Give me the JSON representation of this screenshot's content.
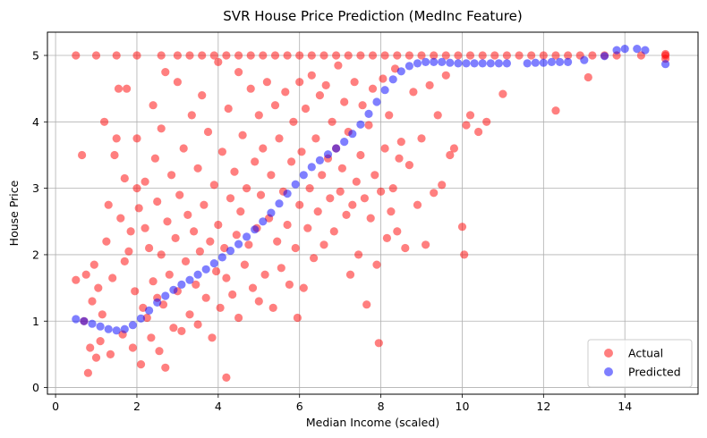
{
  "chart_data": {
    "type": "scatter",
    "title": "SVR House Price Prediction (MedInc Feature)",
    "xlabel": "Median Income (scaled)",
    "ylabel": "House Price",
    "xlim": [
      -0.2,
      15.8
    ],
    "ylim": [
      -0.1,
      5.35
    ],
    "x_ticks": [
      0,
      2,
      4,
      6,
      8,
      10,
      12,
      14
    ],
    "y_ticks": [
      0,
      1,
      2,
      3,
      4,
      5
    ],
    "grid": true,
    "legend_position": "lower-right",
    "series": [
      {
        "name": "Actual",
        "color": "#ff0000",
        "opacity": 0.5,
        "points": [
          [
            0.5,
            1.62
          ],
          [
            0.5,
            5.0
          ],
          [
            0.65,
            3.5
          ],
          [
            0.7,
            1.0
          ],
          [
            0.75,
            1.7
          ],
          [
            0.8,
            0.22
          ],
          [
            0.85,
            0.6
          ],
          [
            0.9,
            1.3
          ],
          [
            0.95,
            1.85
          ],
          [
            1.0,
            0.45
          ],
          [
            1.0,
            5.0
          ],
          [
            1.05,
            1.5
          ],
          [
            1.1,
            0.7
          ],
          [
            1.15,
            1.1
          ],
          [
            1.2,
            4.0
          ],
          [
            1.25,
            2.2
          ],
          [
            1.3,
            2.75
          ],
          [
            1.35,
            0.5
          ],
          [
            1.4,
            1.65
          ],
          [
            1.45,
            3.5
          ],
          [
            1.5,
            3.75
          ],
          [
            1.55,
            4.5
          ],
          [
            1.6,
            2.55
          ],
          [
            1.65,
            0.8
          ],
          [
            1.7,
            1.9
          ],
          [
            1.7,
            3.15
          ],
          [
            1.75,
            4.5
          ],
          [
            1.8,
            2.05
          ],
          [
            1.85,
            2.35
          ],
          [
            1.9,
            0.6
          ],
          [
            1.95,
            1.45
          ],
          [
            2.0,
            3.0
          ],
          [
            2.0,
            3.75
          ],
          [
            2.05,
            2.7
          ],
          [
            2.1,
            0.35
          ],
          [
            2.15,
            1.2
          ],
          [
            2.2,
            2.4
          ],
          [
            2.2,
            3.1
          ],
          [
            2.25,
            1.05
          ],
          [
            2.3,
            2.1
          ],
          [
            2.35,
            0.75
          ],
          [
            2.4,
            4.25
          ],
          [
            2.4,
            1.6
          ],
          [
            2.45,
            3.45
          ],
          [
            2.5,
            2.8
          ],
          [
            2.5,
            1.35
          ],
          [
            2.55,
            0.55
          ],
          [
            2.6,
            3.9
          ],
          [
            2.6,
            2.0
          ],
          [
            2.65,
            1.25
          ],
          [
            2.7,
            0.3
          ],
          [
            2.7,
            4.75
          ],
          [
            2.75,
            2.5
          ],
          [
            2.8,
            1.7
          ],
          [
            2.85,
            3.2
          ],
          [
            2.9,
            0.9
          ],
          [
            2.95,
            2.25
          ],
          [
            3.0,
            4.6
          ],
          [
            3.0,
            1.45
          ],
          [
            3.05,
            2.9
          ],
          [
            3.1,
            0.85
          ],
          [
            3.15,
            3.6
          ],
          [
            3.2,
            1.9
          ],
          [
            3.25,
            2.6
          ],
          [
            3.3,
            1.1
          ],
          [
            3.35,
            4.1
          ],
          [
            3.4,
            2.35
          ],
          [
            3.45,
            1.55
          ],
          [
            3.5,
            3.3
          ],
          [
            3.5,
            0.95
          ],
          [
            3.55,
            2.05
          ],
          [
            3.6,
            4.4
          ],
          [
            3.65,
            2.75
          ],
          [
            3.7,
            1.35
          ],
          [
            3.75,
            3.85
          ],
          [
            3.8,
            2.2
          ],
          [
            3.85,
            0.75
          ],
          [
            3.9,
            3.05
          ],
          [
            3.95,
            1.75
          ],
          [
            4.0,
            4.9
          ],
          [
            4.0,
            2.45
          ],
          [
            4.05,
            1.2
          ],
          [
            4.1,
            3.55
          ],
          [
            4.15,
            2.1
          ],
          [
            4.2,
            0.15
          ],
          [
            4.2,
            1.65
          ],
          [
            4.25,
            4.2
          ],
          [
            4.3,
            2.85
          ],
          [
            4.35,
            1.4
          ],
          [
            4.4,
            3.25
          ],
          [
            4.45,
            2.3
          ],
          [
            4.5,
            4.75
          ],
          [
            4.5,
            1.05
          ],
          [
            4.55,
            2.65
          ],
          [
            4.6,
            3.8
          ],
          [
            4.65,
            1.85
          ],
          [
            4.7,
            3.0
          ],
          [
            4.75,
            2.15
          ],
          [
            4.8,
            4.5
          ],
          [
            4.85,
            1.5
          ],
          [
            4.9,
            3.4
          ],
          [
            4.95,
            2.4
          ],
          [
            5.0,
            4.1
          ],
          [
            5.0,
            1.3
          ],
          [
            5.05,
            2.9
          ],
          [
            5.1,
            3.6
          ],
          [
            5.15,
            1.7
          ],
          [
            5.2,
            4.6
          ],
          [
            5.25,
            2.55
          ],
          [
            5.3,
            3.2
          ],
          [
            5.35,
            1.2
          ],
          [
            5.4,
            4.25
          ],
          [
            5.45,
            2.2
          ],
          [
            5.5,
            3.75
          ],
          [
            5.55,
            1.8
          ],
          [
            5.6,
            2.95
          ],
          [
            5.65,
            4.45
          ],
          [
            5.7,
            2.45
          ],
          [
            5.75,
            1.55
          ],
          [
            5.8,
            3.4
          ],
          [
            5.85,
            4.0
          ],
          [
            5.9,
            2.1
          ],
          [
            5.95,
            1.05
          ],
          [
            6.0,
            4.6
          ],
          [
            6.0,
            2.75
          ],
          [
            6.05,
            3.55
          ],
          [
            6.1,
            1.5
          ],
          [
            6.15,
            4.2
          ],
          [
            6.2,
            2.4
          ],
          [
            6.25,
            3.0
          ],
          [
            6.3,
            4.7
          ],
          [
            6.35,
            1.95
          ],
          [
            6.4,
            3.75
          ],
          [
            6.45,
            2.65
          ],
          [
            6.5,
            4.4
          ],
          [
            6.55,
            3.2
          ],
          [
            6.6,
            2.15
          ],
          [
            6.65,
            4.55
          ],
          [
            6.7,
            3.45
          ],
          [
            6.75,
            2.85
          ],
          [
            6.8,
            4.0
          ],
          [
            6.85,
            2.35
          ],
          [
            6.9,
            3.6
          ],
          [
            6.95,
            4.85
          ],
          [
            7.0,
            2.95
          ],
          [
            7.05,
            3.3
          ],
          [
            7.1,
            4.3
          ],
          [
            7.15,
            2.6
          ],
          [
            7.2,
            3.85
          ],
          [
            7.25,
            1.7
          ],
          [
            7.3,
            2.75
          ],
          [
            7.35,
            4.6
          ],
          [
            7.4,
            3.1
          ],
          [
            7.45,
            2.0
          ],
          [
            7.5,
            3.5
          ],
          [
            7.55,
            4.25
          ],
          [
            7.6,
            2.85
          ],
          [
            7.65,
            1.25
          ],
          [
            7.7,
            3.95
          ],
          [
            7.75,
            2.55
          ],
          [
            7.8,
            4.5
          ],
          [
            7.85,
            3.2
          ],
          [
            7.9,
            1.85
          ],
          [
            7.95,
            0.67
          ],
          [
            8.0,
            2.95
          ],
          [
            8.05,
            4.65
          ],
          [
            8.1,
            3.6
          ],
          [
            8.15,
            2.25
          ],
          [
            8.2,
            4.1
          ],
          [
            8.25,
            2.65
          ],
          [
            8.3,
            3.0
          ],
          [
            8.35,
            4.8
          ],
          [
            8.4,
            2.35
          ],
          [
            8.45,
            3.45
          ],
          [
            8.5,
            3.7
          ],
          [
            8.6,
            2.1
          ],
          [
            8.7,
            3.35
          ],
          [
            8.8,
            4.45
          ],
          [
            8.9,
            2.75
          ],
          [
            9.0,
            3.75
          ],
          [
            9.1,
            2.15
          ],
          [
            9.2,
            4.55
          ],
          [
            9.3,
            2.93
          ],
          [
            9.4,
            4.1
          ],
          [
            9.5,
            3.05
          ],
          [
            9.6,
            4.7
          ],
          [
            9.7,
            3.5
          ],
          [
            9.8,
            3.6
          ],
          [
            10.0,
            2.42
          ],
          [
            10.05,
            2.0
          ],
          [
            10.1,
            3.95
          ],
          [
            10.2,
            4.1
          ],
          [
            10.4,
            3.85
          ],
          [
            10.6,
            4.0
          ],
          [
            11.0,
            4.42
          ],
          [
            12.3,
            4.17
          ],
          [
            13.1,
            4.67
          ],
          [
            1.5,
            5.0
          ],
          [
            2.0,
            5.0
          ],
          [
            2.6,
            5.0
          ],
          [
            3.0,
            5.0
          ],
          [
            3.3,
            5.0
          ],
          [
            3.6,
            5.0
          ],
          [
            3.9,
            5.0
          ],
          [
            4.2,
            5.0
          ],
          [
            4.5,
            5.0
          ],
          [
            4.8,
            5.0
          ],
          [
            5.1,
            5.0
          ],
          [
            5.4,
            5.0
          ],
          [
            5.7,
            5.0
          ],
          [
            6.0,
            5.0
          ],
          [
            6.3,
            5.0
          ],
          [
            6.6,
            5.0
          ],
          [
            6.9,
            5.0
          ],
          [
            7.2,
            5.0
          ],
          [
            7.5,
            5.0
          ],
          [
            7.8,
            5.0
          ],
          [
            8.1,
            5.0
          ],
          [
            8.4,
            5.0
          ],
          [
            8.7,
            5.0
          ],
          [
            9.0,
            5.0
          ],
          [
            9.3,
            5.0
          ],
          [
            9.6,
            5.0
          ],
          [
            9.9,
            5.0
          ],
          [
            10.2,
            5.0
          ],
          [
            10.5,
            5.0
          ],
          [
            10.8,
            5.0
          ],
          [
            11.1,
            5.0
          ],
          [
            11.4,
            5.0
          ],
          [
            11.7,
            5.0
          ],
          [
            12.0,
            5.0
          ],
          [
            12.3,
            5.0
          ],
          [
            12.6,
            5.0
          ],
          [
            12.9,
            5.0
          ],
          [
            13.2,
            5.0
          ],
          [
            13.5,
            5.0
          ],
          [
            13.8,
            5.0
          ],
          [
            14.4,
            5.0
          ],
          [
            15.0,
            5.0
          ],
          [
            15.0,
            4.95
          ],
          [
            15.0,
            5.02
          ]
        ]
      },
      {
        "name": "Predicted",
        "color": "#0000ff",
        "opacity": 0.5,
        "points": [
          [
            0.5,
            1.03
          ],
          [
            0.7,
            1.0
          ],
          [
            0.9,
            0.96
          ],
          [
            1.1,
            0.92
          ],
          [
            1.3,
            0.88
          ],
          [
            1.5,
            0.86
          ],
          [
            1.7,
            0.88
          ],
          [
            1.9,
            0.94
          ],
          [
            2.1,
            1.04
          ],
          [
            2.3,
            1.16
          ],
          [
            2.5,
            1.28
          ],
          [
            2.7,
            1.38
          ],
          [
            2.9,
            1.47
          ],
          [
            3.1,
            1.55
          ],
          [
            3.3,
            1.62
          ],
          [
            3.5,
            1.7
          ],
          [
            3.7,
            1.78
          ],
          [
            3.9,
            1.87
          ],
          [
            4.1,
            1.96
          ],
          [
            4.3,
            2.06
          ],
          [
            4.5,
            2.16
          ],
          [
            4.7,
            2.27
          ],
          [
            4.9,
            2.38
          ],
          [
            5.1,
            2.5
          ],
          [
            5.3,
            2.63
          ],
          [
            5.5,
            2.77
          ],
          [
            5.7,
            2.92
          ],
          [
            5.9,
            3.06
          ],
          [
            6.1,
            3.2
          ],
          [
            6.3,
            3.32
          ],
          [
            6.5,
            3.42
          ],
          [
            6.7,
            3.51
          ],
          [
            6.9,
            3.6
          ],
          [
            7.1,
            3.7
          ],
          [
            7.3,
            3.82
          ],
          [
            7.5,
            3.96
          ],
          [
            7.7,
            4.12
          ],
          [
            7.9,
            4.3
          ],
          [
            8.1,
            4.48
          ],
          [
            8.3,
            4.64
          ],
          [
            8.5,
            4.76
          ],
          [
            8.7,
            4.84
          ],
          [
            8.9,
            4.88
          ],
          [
            9.1,
            4.9
          ],
          [
            9.3,
            4.9
          ],
          [
            9.5,
            4.9
          ],
          [
            9.7,
            4.89
          ],
          [
            9.9,
            4.88
          ],
          [
            10.1,
            4.88
          ],
          [
            10.3,
            4.88
          ],
          [
            10.5,
            4.88
          ],
          [
            10.7,
            4.88
          ],
          [
            10.9,
            4.88
          ],
          [
            11.1,
            4.88
          ],
          [
            11.6,
            4.88
          ],
          [
            11.8,
            4.89
          ],
          [
            12.0,
            4.89
          ],
          [
            12.2,
            4.9
          ],
          [
            12.4,
            4.9
          ],
          [
            12.6,
            4.9
          ],
          [
            13.0,
            4.93
          ],
          [
            13.5,
            4.99
          ],
          [
            13.8,
            5.08
          ],
          [
            14.0,
            5.1
          ],
          [
            14.3,
            5.1
          ],
          [
            14.5,
            5.08
          ],
          [
            15.0,
            4.87
          ]
        ]
      }
    ]
  }
}
